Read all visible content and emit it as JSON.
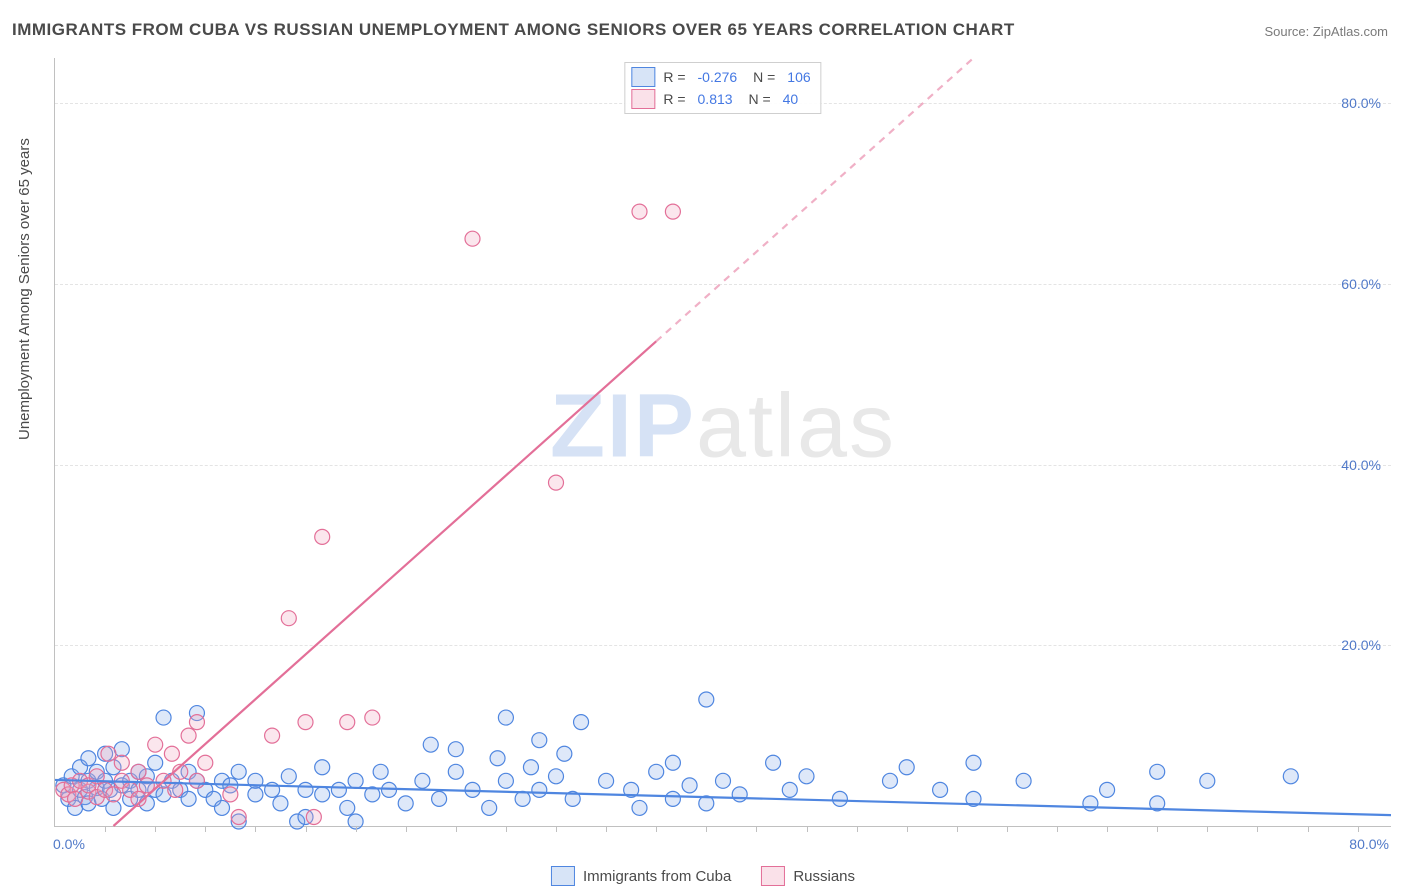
{
  "title": "IMMIGRANTS FROM CUBA VS RUSSIAN UNEMPLOYMENT AMONG SENIORS OVER 65 YEARS CORRELATION CHART",
  "source": "Source: ZipAtlas.com",
  "y_axis_label": "Unemployment Among Seniors over 65 years",
  "watermark_a": "ZIP",
  "watermark_b": "atlas",
  "chart": {
    "type": "scatter",
    "xlim": [
      0,
      80
    ],
    "ylim": [
      0,
      85
    ],
    "x_start_label": "0.0%",
    "x_end_label": "80.0%",
    "y_ticks": [
      20.0,
      40.0,
      60.0,
      80.0
    ],
    "y_tick_labels": [
      "20.0%",
      "40.0%",
      "60.0%",
      "80.0%"
    ],
    "x_minor_ticks": [
      3,
      6,
      9,
      12,
      15,
      18,
      21,
      24,
      27,
      30,
      33,
      36,
      39,
      42,
      45,
      48,
      51,
      54,
      57,
      60,
      63,
      66,
      69,
      72,
      75,
      78
    ],
    "background_color": "#ffffff",
    "grid_color": "#e4e4e4",
    "axis_color": "#c0c0c0",
    "marker_radius": 7.5,
    "marker_stroke_width": 1.2,
    "marker_fill_opacity": 0.28,
    "series": [
      {
        "name": "Immigrants from Cuba",
        "color_stroke": "#4f86e0",
        "color_fill": "#88aee8",
        "R": "-0.276",
        "N": "106",
        "trend": {
          "x1": 0,
          "y1": 5.1,
          "x2": 80,
          "y2": 1.2,
          "dashed_after_x": null,
          "stroke_width": 2.2
        },
        "points": [
          [
            0.5,
            4.5
          ],
          [
            0.8,
            3.0
          ],
          [
            1.0,
            5.5
          ],
          [
            1.2,
            2.0
          ],
          [
            1.5,
            6.5
          ],
          [
            1.5,
            4.0
          ],
          [
            1.8,
            3.2
          ],
          [
            2.0,
            7.5
          ],
          [
            2.0,
            5.0
          ],
          [
            2.0,
            2.5
          ],
          [
            2.5,
            4.2
          ],
          [
            2.5,
            6.0
          ],
          [
            2.8,
            3.0
          ],
          [
            3.0,
            8.0
          ],
          [
            3.0,
            5.0
          ],
          [
            3.3,
            4.0
          ],
          [
            3.5,
            6.5
          ],
          [
            3.5,
            2.0
          ],
          [
            4.0,
            4.5
          ],
          [
            4.0,
            8.5
          ],
          [
            4.5,
            5.0
          ],
          [
            4.5,
            3.0
          ],
          [
            5.0,
            6.0
          ],
          [
            5.0,
            4.0
          ],
          [
            5.5,
            5.5
          ],
          [
            5.5,
            2.5
          ],
          [
            6.0,
            4.0
          ],
          [
            6.0,
            7.0
          ],
          [
            6.5,
            12.0
          ],
          [
            6.5,
            3.5
          ],
          [
            7.0,
            5.0
          ],
          [
            7.5,
            4.0
          ],
          [
            8.0,
            6.0
          ],
          [
            8.0,
            3.0
          ],
          [
            8.5,
            5.0
          ],
          [
            8.5,
            12.5
          ],
          [
            9.0,
            4.0
          ],
          [
            9.5,
            3.0
          ],
          [
            10.0,
            5.0
          ],
          [
            10.0,
            2.0
          ],
          [
            10.5,
            4.5
          ],
          [
            11.0,
            0.5
          ],
          [
            11.0,
            6.0
          ],
          [
            12.0,
            3.5
          ],
          [
            12.0,
            5.0
          ],
          [
            13.0,
            4.0
          ],
          [
            13.5,
            2.5
          ],
          [
            14.0,
            5.5
          ],
          [
            14.5,
            0.5
          ],
          [
            15.0,
            4.0
          ],
          [
            15.0,
            1.0
          ],
          [
            16.0,
            3.5
          ],
          [
            16.0,
            6.5
          ],
          [
            17.0,
            4.0
          ],
          [
            17.5,
            2.0
          ],
          [
            18.0,
            5.0
          ],
          [
            18.0,
            0.5
          ],
          [
            19.0,
            3.5
          ],
          [
            19.5,
            6.0
          ],
          [
            20.0,
            4.0
          ],
          [
            21.0,
            2.5
          ],
          [
            22.0,
            5.0
          ],
          [
            22.5,
            9.0
          ],
          [
            23.0,
            3.0
          ],
          [
            24.0,
            6.0
          ],
          [
            24.0,
            8.5
          ],
          [
            25.0,
            4.0
          ],
          [
            26.0,
            2.0
          ],
          [
            26.5,
            7.5
          ],
          [
            27.0,
            5.0
          ],
          [
            27.0,
            12.0
          ],
          [
            28.0,
            3.0
          ],
          [
            28.5,
            6.5
          ],
          [
            29.0,
            4.0
          ],
          [
            29.0,
            9.5
          ],
          [
            30.0,
            5.5
          ],
          [
            30.5,
            8.0
          ],
          [
            31.0,
            3.0
          ],
          [
            31.5,
            11.5
          ],
          [
            33.0,
            5.0
          ],
          [
            34.5,
            4.0
          ],
          [
            35.0,
            2.0
          ],
          [
            36.0,
            6.0
          ],
          [
            37.0,
            3.0
          ],
          [
            37.0,
            7.0
          ],
          [
            38.0,
            4.5
          ],
          [
            39.0,
            14.0
          ],
          [
            39.0,
            2.5
          ],
          [
            40.0,
            5.0
          ],
          [
            41.0,
            3.5
          ],
          [
            43.0,
            7.0
          ],
          [
            44.0,
            4.0
          ],
          [
            45.0,
            5.5
          ],
          [
            47.0,
            3.0
          ],
          [
            50.0,
            5.0
          ],
          [
            51.0,
            6.5
          ],
          [
            53.0,
            4.0
          ],
          [
            55.0,
            7.0
          ],
          [
            55.0,
            3.0
          ],
          [
            58.0,
            5.0
          ],
          [
            62.0,
            2.5
          ],
          [
            63.0,
            4.0
          ],
          [
            66.0,
            2.5
          ],
          [
            66.0,
            6.0
          ],
          [
            69.0,
            5.0
          ],
          [
            74.0,
            5.5
          ]
        ]
      },
      {
        "name": "Russians",
        "color_stroke": "#e36f98",
        "color_fill": "#f0a5bd",
        "R": "0.813",
        "N": "40",
        "trend": {
          "x1": 3.5,
          "y1": 0,
          "x2": 55,
          "y2": 85,
          "dashed_after_x": 36,
          "stroke_width": 2.2
        },
        "points": [
          [
            0.5,
            4.0
          ],
          [
            0.8,
            3.5
          ],
          [
            1.0,
            4.5
          ],
          [
            1.2,
            3.0
          ],
          [
            1.5,
            5.0
          ],
          [
            2.0,
            3.8
          ],
          [
            2.0,
            4.5
          ],
          [
            2.5,
            3.2
          ],
          [
            2.5,
            5.5
          ],
          [
            3.0,
            4.0
          ],
          [
            3.2,
            8.0
          ],
          [
            3.5,
            3.5
          ],
          [
            4.0,
            5.0
          ],
          [
            4.0,
            7.0
          ],
          [
            4.5,
            4.0
          ],
          [
            5.0,
            3.0
          ],
          [
            5.0,
            6.0
          ],
          [
            5.5,
            4.5
          ],
          [
            6.0,
            9.0
          ],
          [
            6.5,
            5.0
          ],
          [
            7.0,
            8.0
          ],
          [
            7.2,
            4.0
          ],
          [
            7.5,
            6.0
          ],
          [
            8.0,
            10.0
          ],
          [
            8.5,
            5.0
          ],
          [
            8.5,
            11.5
          ],
          [
            9.0,
            7.0
          ],
          [
            10.5,
            3.5
          ],
          [
            11.0,
            1.0
          ],
          [
            13.0,
            10.0
          ],
          [
            14.0,
            23.0
          ],
          [
            15.0,
            11.5
          ],
          [
            15.5,
            1.0
          ],
          [
            16.0,
            32.0
          ],
          [
            17.5,
            11.5
          ],
          [
            19.0,
            12.0
          ],
          [
            25.0,
            65.0
          ],
          [
            35.0,
            68.0
          ],
          [
            37.0,
            68.0
          ],
          [
            30.0,
            38.0
          ]
        ]
      }
    ]
  },
  "bottom_legend": [
    {
      "label": "Immigrants from Cuba",
      "stroke": "#4f86e0",
      "fill": "#88aee8"
    },
    {
      "label": "Russians",
      "stroke": "#e36f98",
      "fill": "#f0a5bd"
    }
  ]
}
